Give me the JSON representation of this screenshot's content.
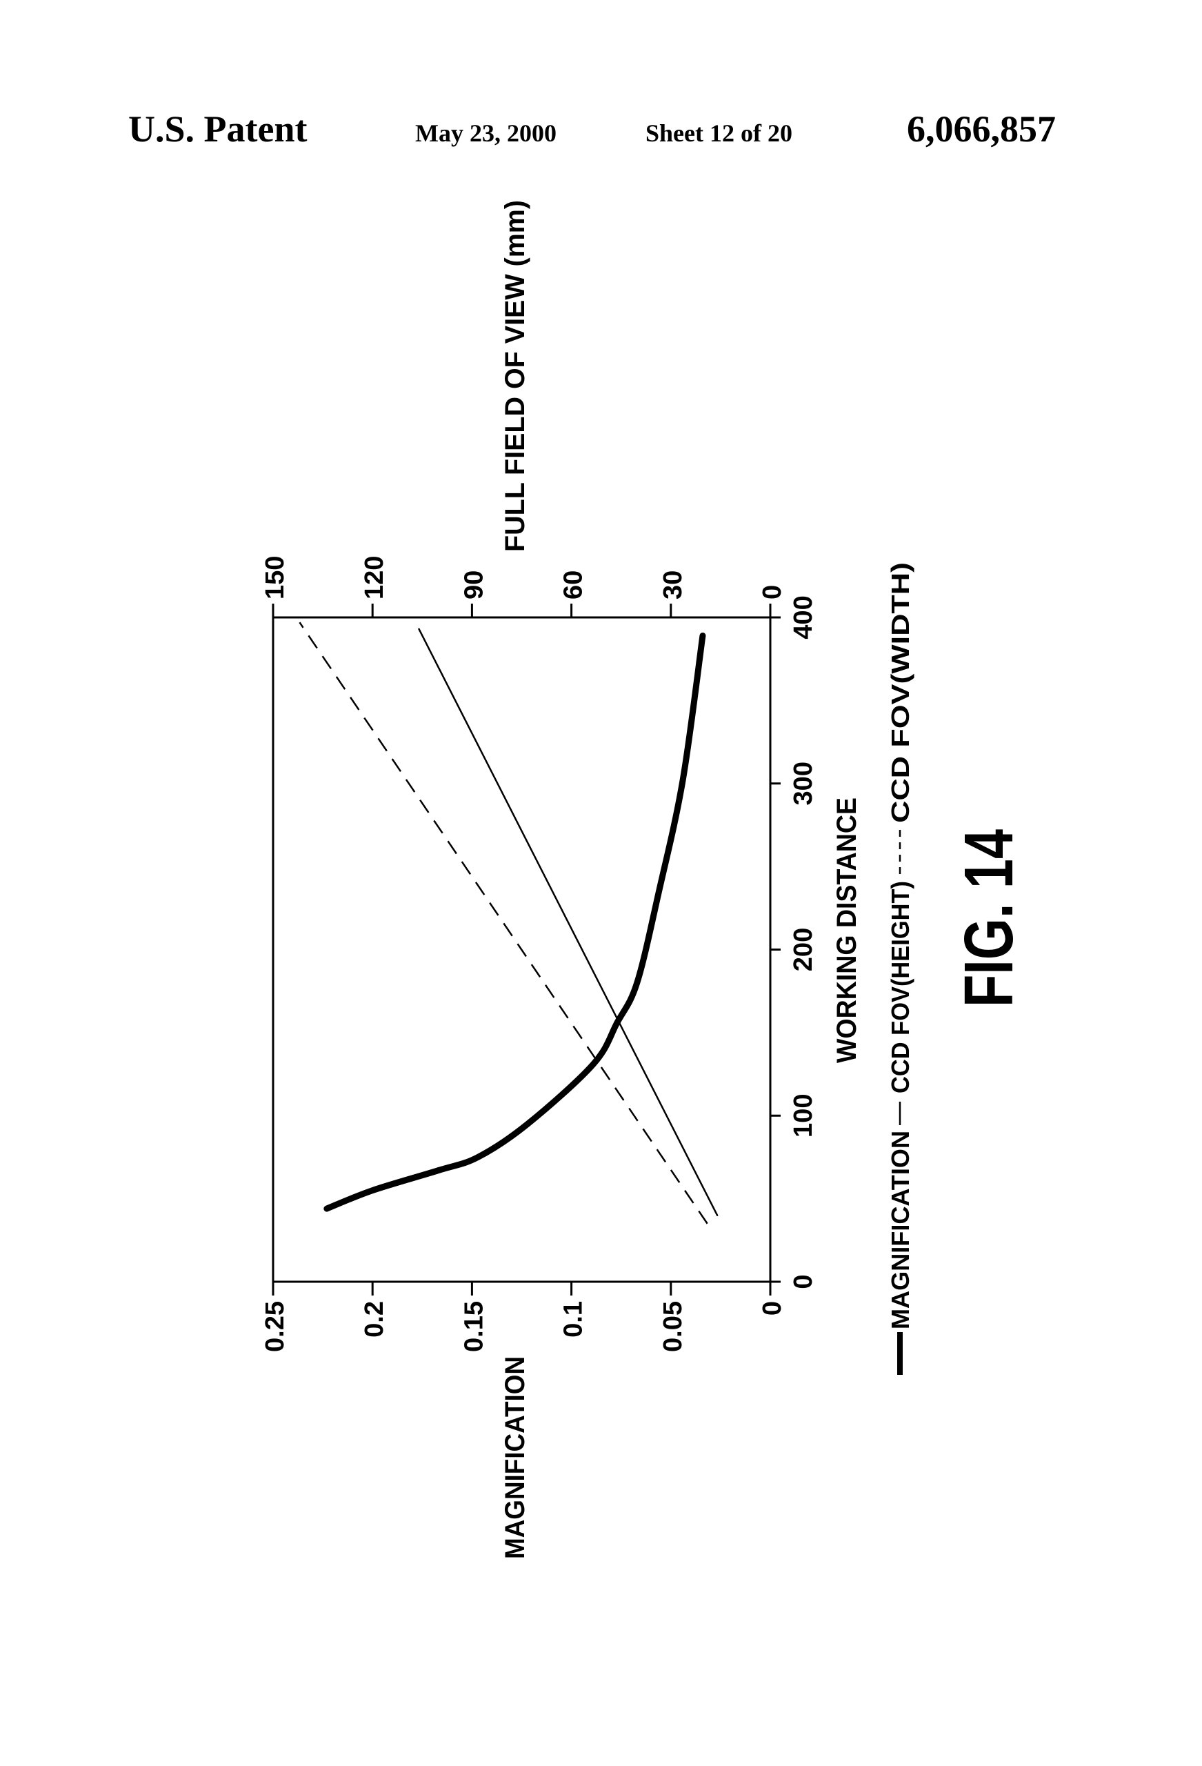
{
  "header": {
    "left": "U.S. Patent",
    "date": "May 23, 2000",
    "sheet": "Sheet 12 of 20",
    "number": "6,066,857"
  },
  "figure_label": "FIG. 14",
  "chart_data": {
    "type": "line",
    "orientation": "rotated 90° counter-clockwise on the page",
    "xlabel": "WORKING DISTANCE",
    "ylabel_left": "MAGNIFICATION",
    "ylabel_right": "FULL FIELD OF VIEW (mm)",
    "xlim": [
      0,
      400
    ],
    "ylim_left": [
      0,
      0.25
    ],
    "ylim_right": [
      0,
      150
    ],
    "x_ticks": [
      "0",
      "100",
      "200",
      "300",
      "400"
    ],
    "y_left_ticks": [
      "0",
      "0.05",
      "0.1",
      "0.15",
      "0.2",
      "0.25"
    ],
    "y_right_ticks": [
      "0",
      "30",
      "60",
      "90",
      "120",
      "150"
    ],
    "grid": false,
    "legend": {
      "placement": "bottom",
      "items": [
        "MAGNIFICATION",
        "CCD FOV(HEIGHT)",
        "CCD FOV(WIDTH)"
      ]
    },
    "series": [
      {
        "name": "MAGNIFICATION",
        "axis": "left",
        "style": "thick-solid",
        "x": [
          44,
          55,
          67,
          75,
          95,
          131,
          156,
          180,
          235,
          302,
          389
        ],
        "y": [
          0.223,
          0.2,
          0.167,
          0.147,
          0.122,
          0.089,
          0.077,
          0.067,
          0.056,
          0.044,
          0.034
        ]
      },
      {
        "name": "CCD FOV(HEIGHT)",
        "axis": "right",
        "style": "thin-solid",
        "x": [
          40,
          393
        ],
        "y": [
          16,
          106
        ]
      },
      {
        "name": "CCD FOV(WIDTH)",
        "axis": "right",
        "style": "dashed",
        "x": [
          35,
          397
        ],
        "y": [
          19,
          142
        ]
      }
    ]
  }
}
